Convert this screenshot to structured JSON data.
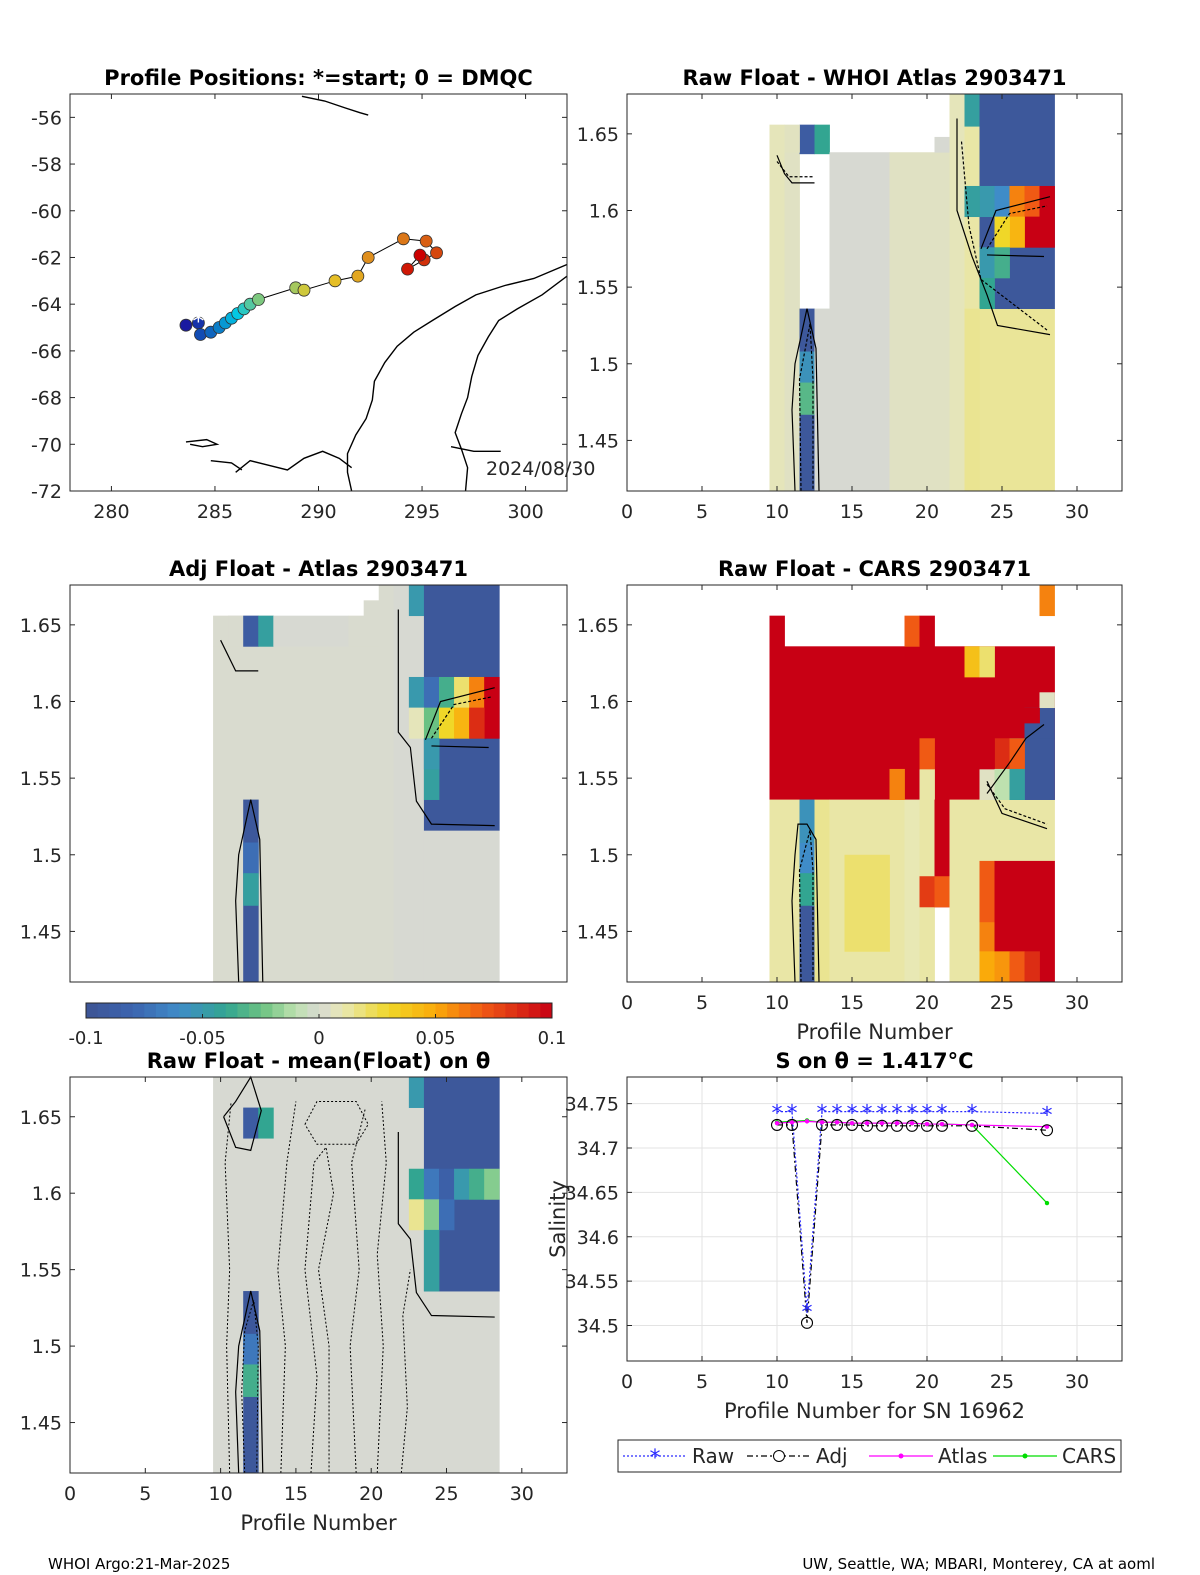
{
  "footer": {
    "left": "WHOI Argo:21-Mar-2025",
    "right": "UW, Seattle, WA; MBARI, Monterey, CA at aoml"
  },
  "colorbar": {
    "ticks": [
      "-0.1",
      "-0.05",
      "0",
      "0.05",
      "0.1"
    ],
    "range": [
      -0.1,
      0.1
    ]
  },
  "colors": {
    "track_start": "#1a1aa0",
    "track_end": "#cc0000",
    "raw": "#2a2aff",
    "adj": "#000000",
    "atlas": "#ff00ff",
    "cars": "#00dd00"
  },
  "chart_data": [
    {
      "type": "scatter",
      "title": "Profile Positions: *=start; 0 = DMQC",
      "xlim": [
        278,
        302
      ],
      "ylim": [
        -72,
        -55
      ],
      "xticks": [
        "280",
        "285",
        "290",
        "295",
        "300"
      ],
      "yticks": [
        "-56",
        "-58",
        "-60",
        "-62",
        "-64",
        "-66",
        "-68",
        "-70",
        "-72"
      ],
      "annotation": "2024/08/30",
      "track": [
        [
          283.6,
          -64.9
        ],
        [
          284.2,
          -64.8
        ],
        [
          284.3,
          -65.3
        ],
        [
          284.8,
          -65.2
        ],
        [
          285.2,
          -65.0
        ],
        [
          285.5,
          -64.8
        ],
        [
          285.8,
          -64.6
        ],
        [
          286.1,
          -64.4
        ],
        [
          286.4,
          -64.2
        ],
        [
          286.7,
          -64.0
        ],
        [
          287.1,
          -63.8
        ],
        [
          288.9,
          -63.3
        ],
        [
          289.3,
          -63.4
        ],
        [
          290.8,
          -63.0
        ],
        [
          291.9,
          -62.8
        ],
        [
          292.4,
          -62.0
        ],
        [
          294.1,
          -61.2
        ],
        [
          295.2,
          -61.3
        ],
        [
          295.7,
          -61.8
        ],
        [
          295.1,
          -62.1
        ],
        [
          294.3,
          -62.5
        ],
        [
          294.9,
          -61.9
        ]
      ]
    },
    {
      "type": "heatmap",
      "title": "Raw Float - WHOI Atlas  2903471",
      "xlim": [
        0,
        33
      ],
      "ylim": [
        1.417,
        1.676
      ],
      "xticks": [
        "0",
        "5",
        "10",
        "15",
        "20",
        "25",
        "30"
      ],
      "yticks": [
        "1.45",
        "1.5",
        "1.55",
        "1.6",
        "1.65"
      ]
    },
    {
      "type": "heatmap",
      "title": "Adj Float - Atlas  2903471",
      "xlim": [
        0,
        33
      ],
      "ylim": [
        1.417,
        1.676
      ],
      "yticks": [
        "1.45",
        "1.5",
        "1.55",
        "1.6",
        "1.65"
      ]
    },
    {
      "type": "heatmap",
      "title": "Raw Float - CARS  2903471",
      "xlim": [
        0,
        33
      ],
      "ylim": [
        1.417,
        1.676
      ],
      "xticks": [
        "0",
        "5",
        "10",
        "15",
        "20",
        "25",
        "30"
      ],
      "yticks": [
        "1.45",
        "1.5",
        "1.55",
        "1.6",
        "1.65"
      ],
      "xlabel": "Profile Number"
    },
    {
      "type": "heatmap",
      "title": "Raw Float - mean(Float) on θ",
      "xlim": [
        0,
        33
      ],
      "ylim": [
        1.417,
        1.676
      ],
      "xticks": [
        "0",
        "5",
        "10",
        "15",
        "20",
        "25",
        "30"
      ],
      "yticks": [
        "1.45",
        "1.5",
        "1.55",
        "1.6",
        "1.65"
      ],
      "xlabel": "Profile Number"
    },
    {
      "type": "line",
      "title": "S on θ = 1.417°C",
      "xlim": [
        0,
        33
      ],
      "ylim": [
        34.46,
        34.78
      ],
      "xticks": [
        "0",
        "5",
        "10",
        "15",
        "20",
        "25",
        "30"
      ],
      "yticks": [
        "34.5",
        "34.55",
        "34.6",
        "34.65",
        "34.7",
        "34.75"
      ],
      "xlabel": "Profile Number for SN 16962",
      "ylabel": "Salinity",
      "x": [
        10,
        11,
        12,
        13,
        14,
        15,
        16,
        17,
        18,
        19,
        20,
        21,
        23,
        28
      ],
      "series": [
        {
          "name": "Raw",
          "values": [
            34.741,
            34.741,
            34.517,
            34.741,
            34.741,
            34.741,
            34.741,
            34.741,
            34.741,
            34.741,
            34.741,
            34.741,
            34.741,
            34.739
          ]
        },
        {
          "name": "Adj",
          "values": [
            34.726,
            34.726,
            34.503,
            34.726,
            34.726,
            34.726,
            34.725,
            34.725,
            34.725,
            34.725,
            34.725,
            34.725,
            34.725,
            34.72
          ]
        },
        {
          "name": "Atlas",
          "values": [
            34.728,
            34.729,
            34.73,
            34.729,
            34.729,
            34.728,
            34.728,
            34.728,
            34.728,
            34.728,
            34.727,
            34.727,
            34.726,
            34.724
          ]
        },
        {
          "name": "CARS",
          "values": [
            34.729,
            34.73,
            34.731,
            34.729,
            34.729,
            34.728,
            34.728,
            34.728,
            34.728,
            34.728,
            34.727,
            34.727,
            34.726,
            34.638
          ]
        }
      ]
    }
  ]
}
